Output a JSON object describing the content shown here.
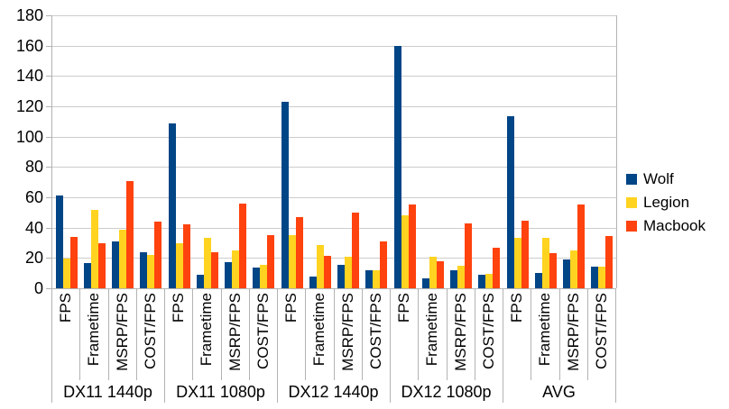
{
  "chart_data": {
    "type": "bar",
    "title": "",
    "legend_position": "right",
    "y_axis": {
      "min": 0,
      "max": 180,
      "step": 20,
      "grid": true
    },
    "group_labels": [
      "DX11 1440p",
      "DX11 1080p",
      "DX12 1440p",
      "DX12 1080p",
      "AVG"
    ],
    "metric_labels": [
      "FPS",
      "Frametime",
      "MSRP/FPS",
      "COST/FPS"
    ],
    "series": [
      {
        "name": "Wolf",
        "color": "#004586",
        "values": [
          [
            61,
            16.5,
            31,
            24
          ],
          [
            109,
            9,
            17,
            13.5
          ],
          [
            123,
            8,
            15.5,
            12
          ],
          [
            160,
            6.5,
            12,
            9
          ],
          [
            113.5,
            10,
            19,
            14.5
          ]
        ]
      },
      {
        "name": "Legion",
        "color": "#FFD320",
        "values": [
          [
            19.5,
            51.5,
            38.5,
            22
          ],
          [
            30,
            33.5,
            25,
            15.5
          ],
          [
            35,
            28.5,
            20.5,
            12
          ],
          [
            48,
            21,
            15,
            9.5
          ],
          [
            33,
            33.5,
            25,
            14.5
          ]
        ]
      },
      {
        "name": "Macbook",
        "color": "#FF420E",
        "values": [
          [
            34,
            29.5,
            70.5,
            44
          ],
          [
            42,
            24,
            56,
            35
          ],
          [
            47,
            21.5,
            50,
            31
          ],
          [
            55,
            18,
            43,
            27
          ],
          [
            44.5,
            23,
            55,
            34.5
          ]
        ]
      }
    ]
  },
  "colors": {
    "background": "#ffffff",
    "gridline": "#cccccc",
    "axis": "#b3b3b3",
    "text": "#000000"
  }
}
